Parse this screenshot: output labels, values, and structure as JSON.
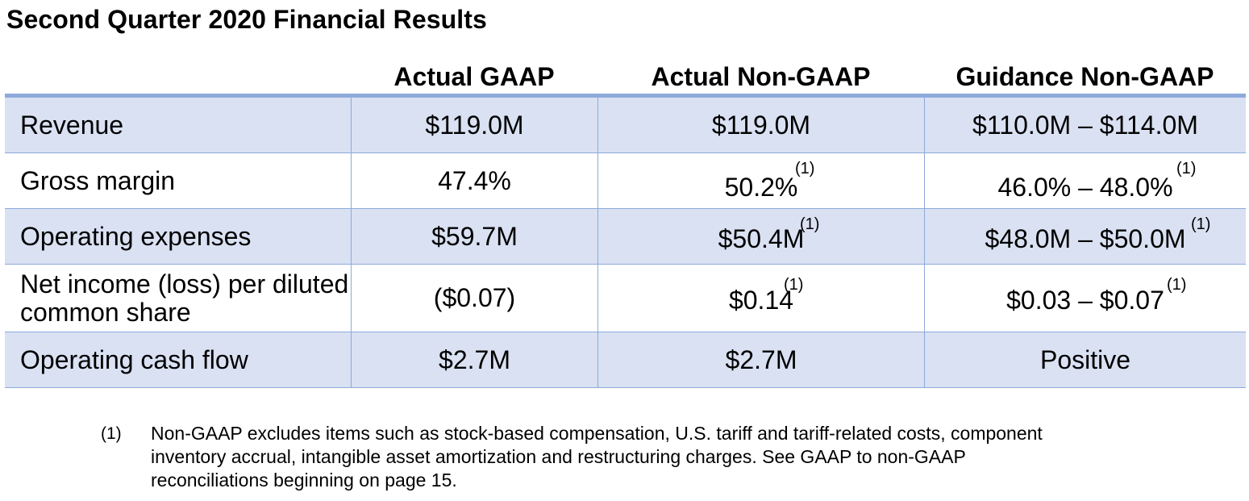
{
  "title": "Second Quarter 2020 Financial Results",
  "table": {
    "headers": [
      "",
      "Actual GAAP",
      "Actual Non-GAAP",
      "Guidance Non-GAAP"
    ],
    "rows": [
      {
        "label": "Revenue",
        "actual_gaap": "$119.0M",
        "actual_non_gaap": "$119.0M",
        "actual_non_gaap_note": "",
        "guidance_non_gaap": "$110.0M – $114.0M",
        "guidance_note": ""
      },
      {
        "label": "Gross margin",
        "actual_gaap": "47.4%",
        "actual_non_gaap": "50.2%",
        "actual_non_gaap_note": "(1)",
        "guidance_non_gaap": "46.0% – 48.0%",
        "guidance_note": "(1)"
      },
      {
        "label": "Operating expenses",
        "actual_gaap": "$59.7M",
        "actual_non_gaap": "$50.4M",
        "actual_non_gaap_note": "(1)",
        "guidance_non_gaap": "$48.0M – $50.0M",
        "guidance_note": "(1)"
      },
      {
        "label": "Net income (loss) per diluted common share",
        "actual_gaap": "($0.07)",
        "actual_non_gaap": "$0.14",
        "actual_non_gaap_note": "(1)",
        "guidance_non_gaap": "$0.03 – $0.07",
        "guidance_note": "(1)"
      },
      {
        "label": "Operating cash flow",
        "actual_gaap": "$2.7M",
        "actual_non_gaap": "$2.7M",
        "actual_non_gaap_note": "",
        "guidance_non_gaap": "Positive",
        "guidance_note": ""
      }
    ]
  },
  "footnote": {
    "marker": "(1)",
    "text": "Non-GAAP excludes items such as stock-based compensation, U.S. tariff and tariff-related costs, component inventory accrual, intangible asset amortization and restructuring charges. See GAAP to non-GAAP reconciliations beginning on page 15."
  },
  "colors": {
    "shaded_row": "#d9e1f2",
    "border": "#8eaadb",
    "text": "#000000"
  }
}
